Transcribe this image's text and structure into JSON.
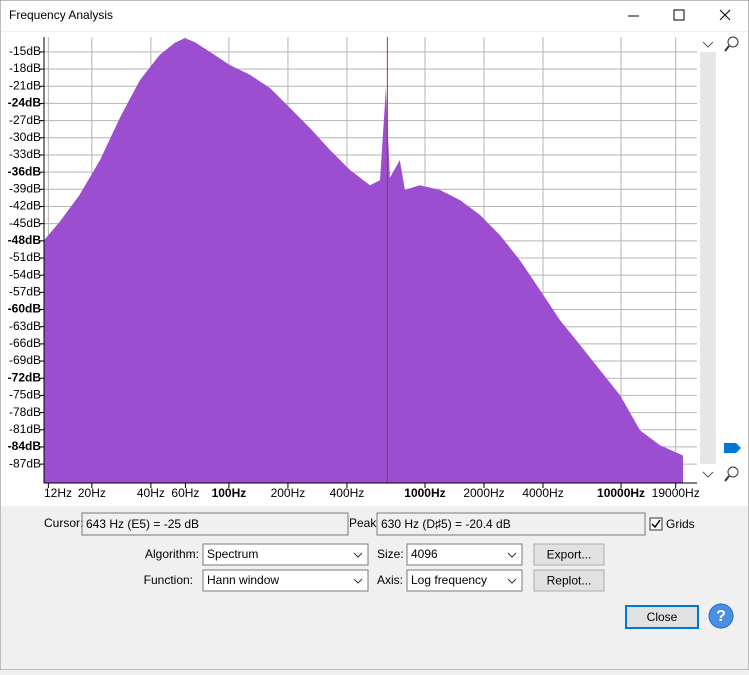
{
  "window": {
    "title": "Frequency Analysis"
  },
  "chart_data": {
    "type": "area",
    "x": [
      11.4,
      13.7,
      17.3,
      22,
      27.8,
      35.2,
      44.4,
      53,
      59.6,
      67,
      80,
      101,
      128,
      162,
      205,
      259,
      327,
      414,
      524,
      590,
      632,
      662,
      744,
      790,
      940,
      1190,
      1510,
      1910,
      2410,
      3050,
      3860,
      4890,
      6180,
      7820,
      9900,
      12500,
      15800,
      20700
    ],
    "values": [
      -47.9,
      -44.7,
      -40,
      -33.9,
      -26.5,
      -19.9,
      -15.5,
      -13.4,
      -12.6,
      -13.3,
      -15,
      -17.3,
      -19,
      -21.3,
      -24.8,
      -28.3,
      -32.1,
      -35.6,
      -38.3,
      -37.4,
      -21.3,
      -37,
      -33.9,
      -39.1,
      -38.3,
      -39.1,
      -40.9,
      -43.5,
      -47,
      -51.4,
      -56.6,
      -61.9,
      -66.2,
      -70.6,
      -75,
      -81.1,
      -83.7,
      -85.5
    ],
    "color": "#9b4fd0",
    "log_x": true,
    "grid": true,
    "xlim": [
      11.4,
      24400
    ],
    "ylim": [
      -90.3,
      -12.4
    ],
    "xticks": [
      {
        "value": 12,
        "label": "12Hz"
      },
      {
        "value": 20,
        "label": "20Hz"
      },
      {
        "value": 40,
        "label": "40Hz"
      },
      {
        "value": 60,
        "label": "60Hz"
      },
      {
        "value": 100,
        "label": "100Hz"
      },
      {
        "value": 200,
        "label": "200Hz"
      },
      {
        "value": 400,
        "label": "400Hz"
      },
      {
        "value": 1000,
        "label": "1000Hz"
      },
      {
        "value": 2000,
        "label": "2000Hz"
      },
      {
        "value": 4000,
        "label": "4000Hz"
      },
      {
        "value": 10000,
        "label": "10000Hz"
      },
      {
        "value": 19000,
        "label": "19000Hz"
      }
    ],
    "yticks": [
      {
        "value": -15,
        "label": "-15dB"
      },
      {
        "value": -18,
        "label": "-18dB"
      },
      {
        "value": -21,
        "label": "-21dB"
      },
      {
        "value": -24,
        "label": "-24dB"
      },
      {
        "value": -27,
        "label": "-27dB"
      },
      {
        "value": -30,
        "label": "-30dB"
      },
      {
        "value": -33,
        "label": "-33dB"
      },
      {
        "value": -36,
        "label": "-36dB"
      },
      {
        "value": -39,
        "label": "-39dB"
      },
      {
        "value": -42,
        "label": "-42dB"
      },
      {
        "value": -45,
        "label": "-45dB"
      },
      {
        "value": -48,
        "label": "-48dB"
      },
      {
        "value": -51,
        "label": "-51dB"
      },
      {
        "value": -54,
        "label": "-54dB"
      },
      {
        "value": -57,
        "label": "-57dB"
      },
      {
        "value": -60,
        "label": "-60dB"
      },
      {
        "value": -63,
        "label": "-63dB"
      },
      {
        "value": -66,
        "label": "-66dB"
      },
      {
        "value": -69,
        "label": "-69dB"
      },
      {
        "value": -72,
        "label": "-72dB"
      },
      {
        "value": -75,
        "label": "-75dB"
      },
      {
        "value": -78,
        "label": "-78dB"
      },
      {
        "value": -81,
        "label": "-81dB"
      },
      {
        "value": -84,
        "label": "-84dB"
      },
      {
        "value": -87,
        "label": "-87dB"
      }
    ],
    "cursor": {
      "x": 643
    }
  },
  "controls": {
    "cursor_label": "Cursor:",
    "cursor_value": "643 Hz (E5) = -25 dB",
    "peak_label": "Peak:",
    "peak_value": "630 Hz (D♯5) = -20.4 dB",
    "grids_label": "Grids",
    "grids_checked": true,
    "algorithm_label": "Algorithm:",
    "algorithm_value": "Spectrum",
    "function_label": "Function:",
    "function_value": "Hann window",
    "size_label": "Size:",
    "size_value": "4096",
    "axis_label": "Axis:",
    "axis_value": "Log frequency",
    "export_button": "Export...",
    "replot_button": "Replot...",
    "close_button": "Close",
    "help_button": "?"
  }
}
